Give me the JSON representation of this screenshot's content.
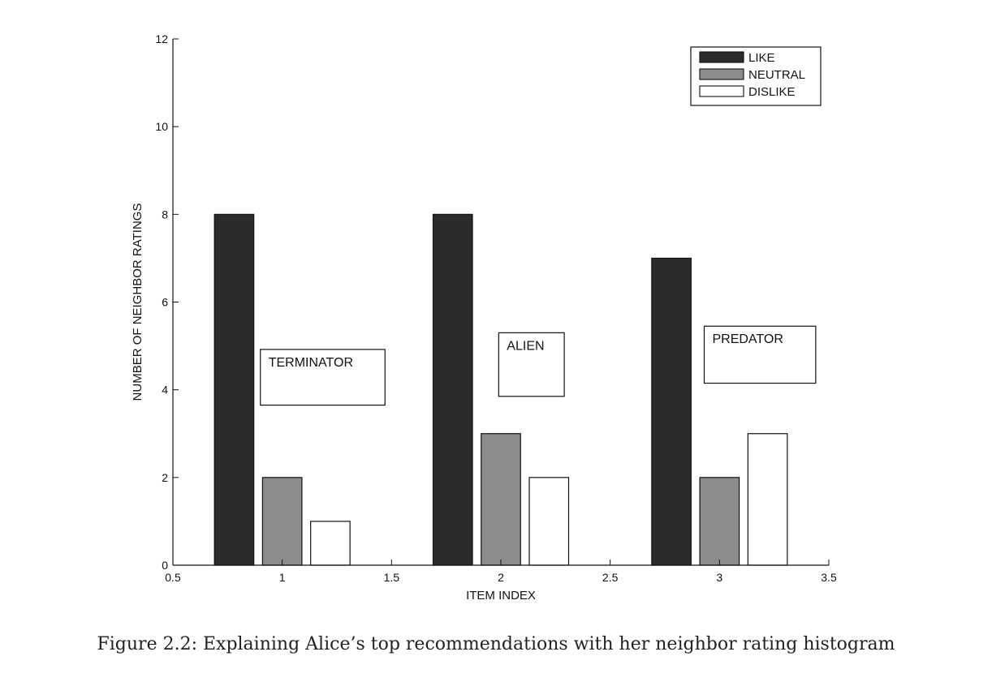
{
  "chart_data": {
    "type": "bar",
    "x": [
      1,
      2,
      3
    ],
    "series": [
      {
        "name": "LIKE",
        "color": "#2b2b2b",
        "offset": -0.22,
        "values": [
          8,
          8,
          7
        ]
      },
      {
        "name": "NEUTRAL",
        "color": "#8c8c8c",
        "offset": 0.0,
        "values": [
          2,
          3,
          2
        ]
      },
      {
        "name": "DISLIKE",
        "color": "#ffffff",
        "offset": 0.22,
        "values": [
          1,
          2,
          3
        ]
      }
    ],
    "bar_width": 0.18,
    "xlim": [
      0.5,
      3.5
    ],
    "ylim": [
      0,
      12
    ],
    "xticks": [
      0.5,
      1,
      1.5,
      2,
      2.5,
      3,
      3.5
    ],
    "xtick_labels": [
      "0.5",
      "1",
      "1.5",
      "2",
      "2.5",
      "3",
      "3.5"
    ],
    "yticks": [
      0,
      2,
      4,
      6,
      8,
      10,
      12
    ],
    "ytick_labels": [
      "0",
      "2",
      "4",
      "6",
      "8",
      "10",
      "12"
    ],
    "xlabel": "ITEM INDEX",
    "ylabel": "NUMBER OF NEIGHBOR RATINGS",
    "grid": false,
    "legend": "top-right",
    "annotations": [
      {
        "text": "TERMINATOR",
        "x0": 0.9,
        "x1": 1.47,
        "y0": 3.65,
        "y1": 4.92
      },
      {
        "text": "ALIEN",
        "x0": 1.99,
        "x1": 2.29,
        "y0": 3.85,
        "y1": 5.3
      },
      {
        "text": "PREDATOR",
        "x0": 2.93,
        "x1": 3.44,
        "y0": 4.15,
        "y1": 5.45
      }
    ]
  },
  "caption": "Figure 2.2: Explaining Alice’s top recommendations with her neighbor rating histogram"
}
